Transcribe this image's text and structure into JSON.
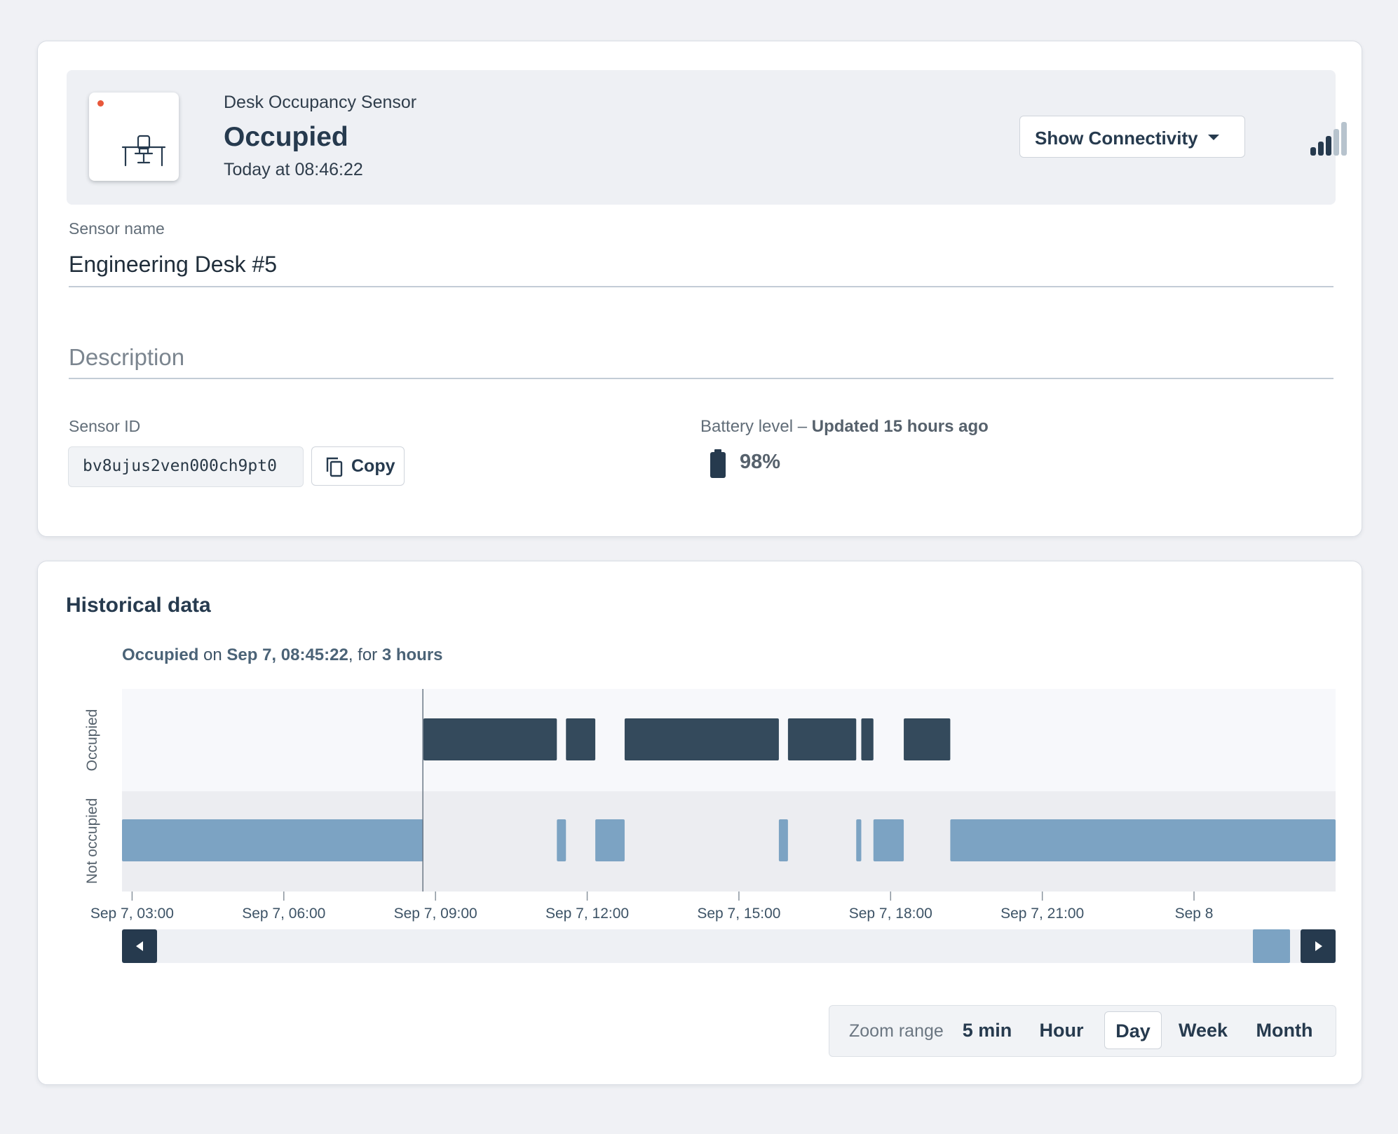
{
  "device": {
    "type_label": "Desk Occupancy Sensor",
    "state": "Occupied",
    "timestamp": "Today at 08:46:22",
    "status_dot_color": "#e8573a",
    "icon": "desk-chair-icon",
    "connectivity_button": "Show Connectivity",
    "signal_bars_filled": 3,
    "signal_bars_total": 5
  },
  "fields": {
    "sensor_name_label": "Sensor name",
    "sensor_name_value": "Engineering Desk #5",
    "description_placeholder": "Description",
    "sensor_id_label": "Sensor ID",
    "sensor_id_value": "bv8ujus2ven000ch9pt0",
    "copy_label": "Copy",
    "battery_label": "Battery level",
    "battery_separator": " – ",
    "battery_updated": "Updated 15 hours ago",
    "battery_value": "98%"
  },
  "history": {
    "title": "Historical data",
    "info_state": "Occupied",
    "info_on": " on ",
    "info_time": "Sep 7, 08:45:22",
    "info_for": ", for ",
    "info_duration": "3 hours",
    "zoom_label": "Zoom range",
    "zoom_options": [
      "5 min",
      "Hour",
      "Day",
      "Week",
      "Month"
    ],
    "zoom_selected": "Day"
  },
  "chart_data": {
    "type": "timeline",
    "rows": [
      "Occupied",
      "Not occupied"
    ],
    "x_ticks": [
      "Sep 7, 03:00",
      "Sep 7, 06:00",
      "Sep 7, 09:00",
      "Sep 7, 12:00",
      "Sep 7, 15:00",
      "Sep 7, 18:00",
      "Sep 7, 21:00",
      "Sep 8"
    ],
    "x_range_hours": [
      2.8,
      26.8
    ],
    "cursor_hours": 8.75,
    "colors": {
      "occupied": "#344a5c",
      "not_occupied": "#7ca3c3"
    },
    "segments": [
      {
        "state": "Not occupied",
        "start": 2.8,
        "end": 8.76
      },
      {
        "state": "Occupied",
        "start": 8.76,
        "end": 11.4
      },
      {
        "state": "Not occupied",
        "start": 11.4,
        "end": 11.58
      },
      {
        "state": "Occupied",
        "start": 11.58,
        "end": 12.16
      },
      {
        "state": "Not occupied",
        "start": 12.16,
        "end": 12.74
      },
      {
        "state": "Occupied",
        "start": 12.74,
        "end": 15.79
      },
      {
        "state": "Not occupied",
        "start": 15.79,
        "end": 15.97
      },
      {
        "state": "Occupied",
        "start": 15.97,
        "end": 17.32
      },
      {
        "state": "Not occupied",
        "start": 17.32,
        "end": 17.42
      },
      {
        "state": "Occupied",
        "start": 17.42,
        "end": 17.66
      },
      {
        "state": "Not occupied",
        "start": 17.66,
        "end": 18.26
      },
      {
        "state": "Occupied",
        "start": 18.26,
        "end": 19.18
      },
      {
        "state": "Not occupied",
        "start": 19.18,
        "end": 26.8
      }
    ]
  }
}
